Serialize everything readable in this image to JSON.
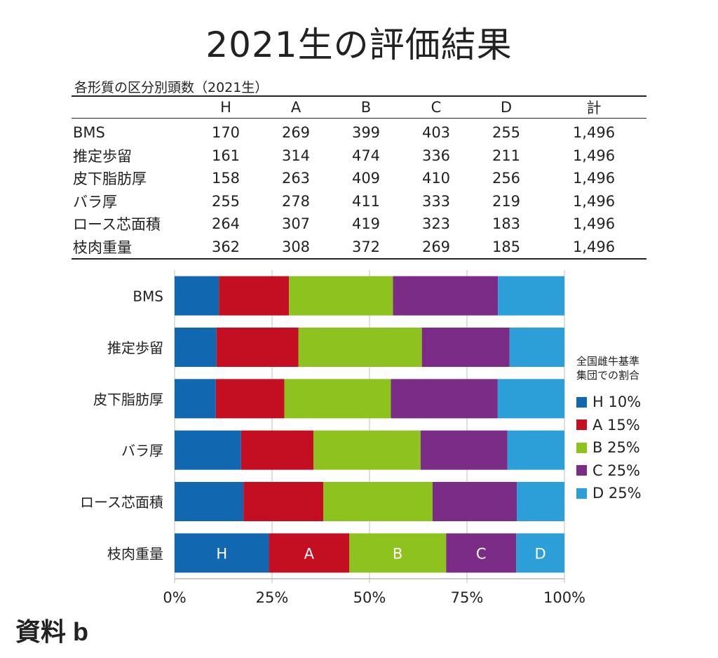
{
  "title": "2021生の評価結果",
  "table": {
    "caption": "各形質の区分別頭数（2021生）",
    "headers": [
      "",
      "H",
      "A",
      "B",
      "C",
      "D",
      "計"
    ],
    "rows": [
      {
        "label": "BMS",
        "values": [
          "170",
          "269",
          "399",
          "403",
          "255",
          "1,496"
        ]
      },
      {
        "label": "推定歩留",
        "values": [
          "161",
          "314",
          "474",
          "336",
          "211",
          "1,496"
        ]
      },
      {
        "label": "皮下脂肪厚",
        "values": [
          "158",
          "263",
          "409",
          "410",
          "256",
          "1,496"
        ]
      },
      {
        "label": "バラ厚",
        "values": [
          "255",
          "278",
          "411",
          "333",
          "219",
          "1,496"
        ]
      },
      {
        "label": "ロース芯面積",
        "values": [
          "264",
          "307",
          "419",
          "323",
          "183",
          "1,496"
        ]
      },
      {
        "label": "枝肉重量",
        "values": [
          "362",
          "308",
          "372",
          "269",
          "185",
          "1,496"
        ]
      }
    ]
  },
  "chart_data": {
    "type": "bar",
    "orientation": "horizontal",
    "stacked": true,
    "normalized": true,
    "categories": [
      "BMS",
      "推定歩留",
      "皮下脂肪厚",
      "バラ厚",
      "ロース芯面積",
      "枝肉重量"
    ],
    "series": [
      {
        "name": "H",
        "color": "#1268b0",
        "values": [
          170,
          161,
          158,
          255,
          264,
          362
        ]
      },
      {
        "name": "A",
        "color": "#c40e22",
        "values": [
          269,
          314,
          263,
          278,
          307,
          308
        ]
      },
      {
        "name": "B",
        "color": "#8dc21f",
        "values": [
          399,
          474,
          409,
          411,
          419,
          372
        ]
      },
      {
        "name": "C",
        "color": "#7b2c86",
        "values": [
          403,
          336,
          410,
          333,
          323,
          269
        ]
      },
      {
        "name": "D",
        "color": "#2c9fd9",
        "values": [
          255,
          211,
          256,
          219,
          183,
          185
        ]
      }
    ],
    "x_ticks": [
      "0%",
      "25%",
      "50%",
      "75%",
      "100%"
    ],
    "xlim": [
      0,
      100
    ],
    "segment_labels_category": "枝肉重量",
    "legend": {
      "position": "right",
      "title_lines": [
        "全国雌牛基準",
        "集団での割合"
      ],
      "items": [
        "H 10%",
        "A 15%",
        "B 25%",
        "C 25%",
        "D 25%"
      ]
    }
  },
  "source_label": "資料 b"
}
